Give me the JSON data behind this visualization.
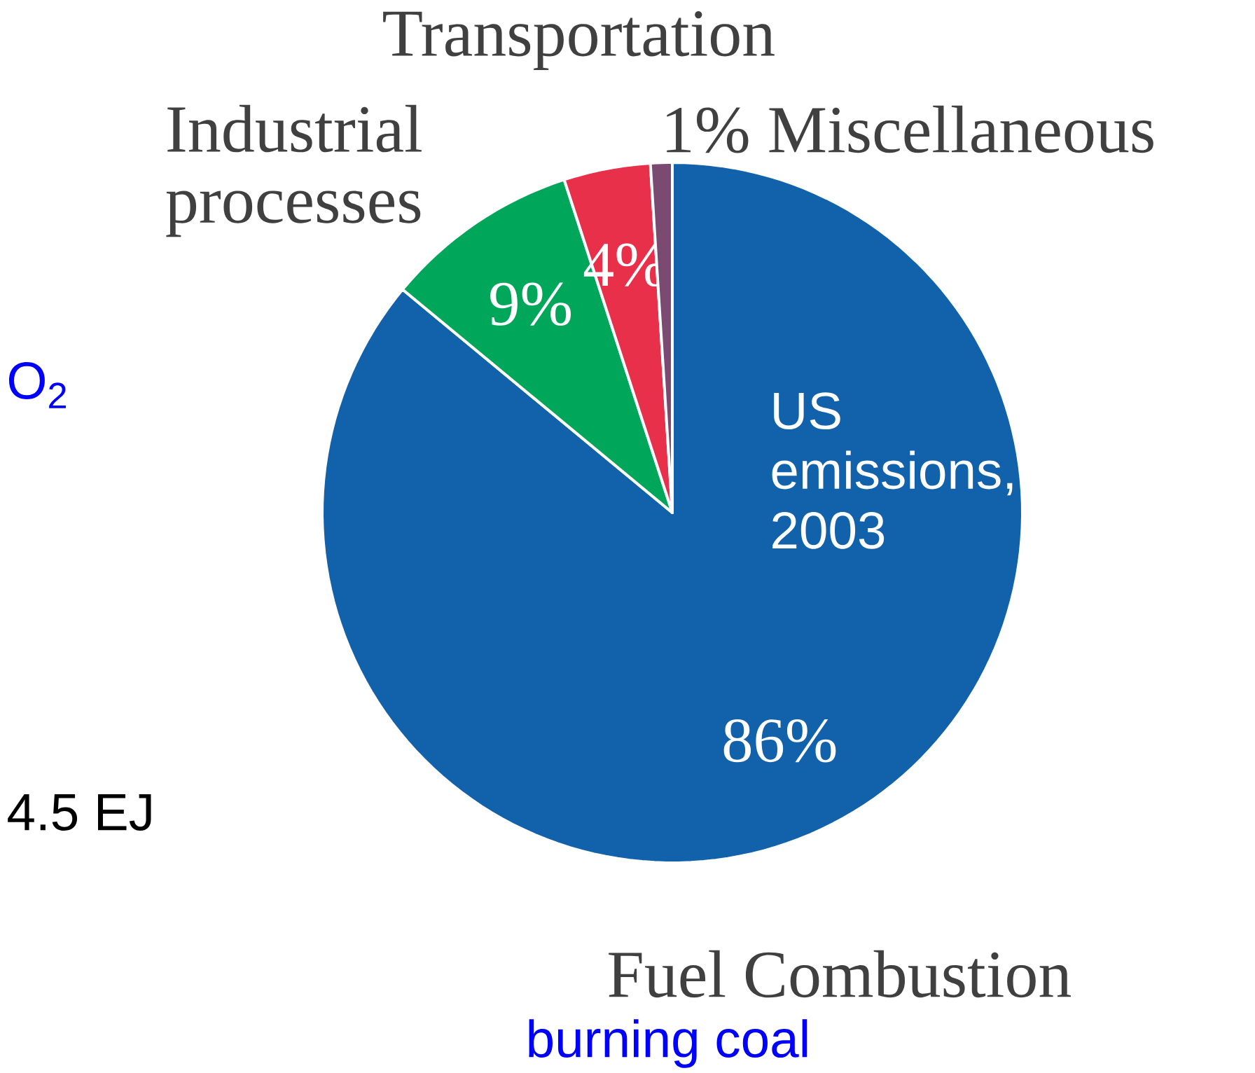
{
  "chart_data": {
    "type": "pie",
    "categories": [
      "Fuel Combustion",
      "Industrial processes",
      "Transportation",
      "Miscellaneous"
    ],
    "values": [
      86,
      9,
      4,
      1
    ],
    "colors": [
      "#1262ab",
      "#00a65a",
      "#e8304a",
      "#7a4a72"
    ],
    "value_labels": [
      "86%",
      "9%",
      "4%",
      "1%"
    ],
    "annotations": [
      "US emissions, 2003",
      "O$_{2}$",
      "4.5 EJ",
      "burning coal"
    ]
  }
}
